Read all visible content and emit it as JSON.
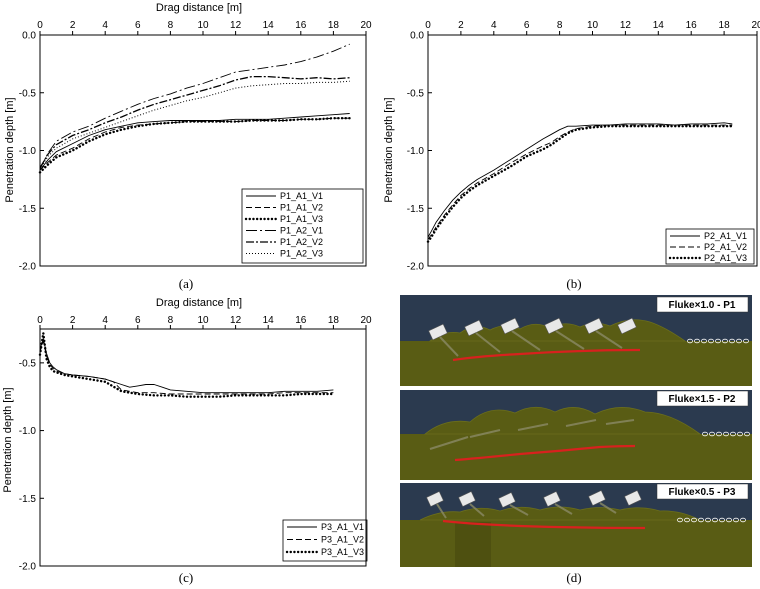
{
  "colors": {
    "line": "#000000",
    "sky": "#2b3a4f",
    "soil": "#595c14",
    "soil_dark": "#4c4f10",
    "trajectory": "#d8211e",
    "label_bg": "#ffffff"
  },
  "charts": [
    {
      "caption": "(a)",
      "xlabel": "Drag distance [m]",
      "ylabel": "Penetration depth [m]",
      "x_ticks": [
        "0",
        "2",
        "4",
        "6",
        "8",
        "10",
        "12",
        "14",
        "16",
        "18",
        "20"
      ],
      "y_ticks": [
        "0.0",
        "-0.5",
        "-1.0",
        "-1.5",
        "-2.0"
      ]
    },
    {
      "caption": "(b)",
      "xlabel": "",
      "ylabel": "Penetration depth [m]",
      "x_ticks": [
        "0",
        "2",
        "4",
        "6",
        "8",
        "10",
        "12",
        "14",
        "16",
        "18",
        "20"
      ],
      "y_ticks": [
        "0.0",
        "-0.5",
        "-1.0",
        "-1.5",
        "-2.0"
      ]
    },
    {
      "caption": "(c)",
      "xlabel": "Drag distance [m]",
      "ylabel": "Penetration depth [m]",
      "x_ticks": [
        "0",
        "2",
        "4",
        "6",
        "8",
        "10",
        "12",
        "14",
        "16",
        "18",
        "20"
      ],
      "y_ticks": [
        "-0.5",
        "-1.0",
        "-1.5",
        "-2.0"
      ]
    }
  ],
  "chart_data": [
    {
      "type": "line",
      "xlim": [
        0,
        20
      ],
      "ylim": [
        -2.0,
        0.0
      ],
      "grid": false,
      "legend_position": "bottom-right",
      "series": [
        {
          "name": "P1_A1_V1",
          "style": "solid",
          "x": [
            0,
            0.5,
            1,
            2,
            3,
            4,
            5,
            6,
            7,
            8,
            9,
            10,
            11,
            12,
            13,
            14,
            15,
            16,
            17,
            18,
            19
          ],
          "y": [
            -1.17,
            -1.08,
            -1.01,
            -0.94,
            -0.87,
            -0.82,
            -0.79,
            -0.76,
            -0.75,
            -0.74,
            -0.74,
            -0.74,
            -0.74,
            -0.73,
            -0.73,
            -0.73,
            -0.72,
            -0.71,
            -0.7,
            -0.69,
            -0.68
          ]
        },
        {
          "name": "P1_A1_V2",
          "style": "dashed",
          "x": [
            0,
            0.5,
            1,
            2,
            3,
            4,
            5,
            6,
            7,
            8,
            9,
            10,
            11,
            12,
            13,
            14,
            15,
            16,
            17,
            18,
            19
          ],
          "y": [
            -1.17,
            -1.1,
            -1.04,
            -0.98,
            -0.9,
            -0.84,
            -0.8,
            -0.78,
            -0.77,
            -0.76,
            -0.75,
            -0.75,
            -0.75,
            -0.75,
            -0.74,
            -0.74,
            -0.74,
            -0.73,
            -0.73,
            -0.72,
            -0.72
          ]
        },
        {
          "name": "P1_A1_V3",
          "style": "dotted-bold",
          "x": [
            0,
            0.5,
            1,
            2,
            3,
            4,
            5,
            6,
            7,
            8,
            9,
            10,
            11,
            12,
            13,
            14,
            15,
            16,
            17,
            18,
            19
          ],
          "y": [
            -1.19,
            -1.12,
            -1.06,
            -1.0,
            -0.92,
            -0.86,
            -0.82,
            -0.79,
            -0.77,
            -0.76,
            -0.75,
            -0.75,
            -0.75,
            -0.75,
            -0.74,
            -0.74,
            -0.74,
            -0.73,
            -0.73,
            -0.72,
            -0.72
          ]
        },
        {
          "name": "P1_A2_V1",
          "style": "long-dash",
          "x": [
            0,
            0.5,
            1,
            2,
            3,
            4,
            5,
            6,
            7,
            8,
            9,
            10,
            11,
            12,
            13,
            14,
            15,
            16,
            17,
            18,
            19
          ],
          "y": [
            -1.16,
            -1.02,
            -0.92,
            -0.84,
            -0.79,
            -0.72,
            -0.66,
            -0.6,
            -0.55,
            -0.51,
            -0.46,
            -0.42,
            -0.37,
            -0.32,
            -0.3,
            -0.28,
            -0.26,
            -0.23,
            -0.19,
            -0.14,
            -0.08
          ]
        },
        {
          "name": "P1_A2_V2",
          "style": "dash-dot",
          "x": [
            0,
            0.5,
            1,
            2,
            3,
            4,
            5,
            6,
            7,
            8,
            9,
            10,
            11,
            12,
            13,
            14,
            15,
            16,
            17,
            18,
            19
          ],
          "y": [
            -1.15,
            -1.03,
            -0.95,
            -0.87,
            -0.82,
            -0.76,
            -0.71,
            -0.65,
            -0.6,
            -0.56,
            -0.52,
            -0.48,
            -0.44,
            -0.39,
            -0.36,
            -0.36,
            -0.37,
            -0.38,
            -0.37,
            -0.38,
            -0.37
          ]
        },
        {
          "name": "P1_A2_V3",
          "style": "fine-dotted",
          "x": [
            0,
            0.5,
            1,
            2,
            3,
            4,
            5,
            6,
            7,
            8,
            9,
            10,
            11,
            12,
            13,
            14,
            15,
            16,
            17,
            18,
            19
          ],
          "y": [
            -1.16,
            -1.05,
            -0.98,
            -0.9,
            -0.85,
            -0.8,
            -0.75,
            -0.7,
            -0.65,
            -0.61,
            -0.57,
            -0.54,
            -0.5,
            -0.46,
            -0.44,
            -0.43,
            -0.42,
            -0.42,
            -0.41,
            -0.41,
            -0.4
          ]
        }
      ]
    },
    {
      "type": "line",
      "xlim": [
        0,
        20
      ],
      "ylim": [
        -2.0,
        0.0
      ],
      "grid": false,
      "legend_position": "bottom-right",
      "series": [
        {
          "name": "P2_A1_V1",
          "style": "solid",
          "x": [
            0,
            0.2,
            0.5,
            1,
            1.5,
            2,
            2.5,
            3,
            4,
            5,
            6,
            7,
            7.5,
            8,
            8.5,
            9,
            10,
            11,
            12,
            13,
            14,
            15,
            16,
            17,
            18,
            18.5
          ],
          "y": [
            -1.75,
            -1.7,
            -1.62,
            -1.52,
            -1.43,
            -1.36,
            -1.3,
            -1.25,
            -1.17,
            -1.08,
            -0.99,
            -0.9,
            -0.86,
            -0.82,
            -0.79,
            -0.79,
            -0.78,
            -0.78,
            -0.77,
            -0.77,
            -0.77,
            -0.78,
            -0.77,
            -0.77,
            -0.76,
            -0.77
          ]
        },
        {
          "name": "P2_A1_V2",
          "style": "dashed",
          "x": [
            0,
            0.2,
            0.5,
            1,
            1.5,
            2,
            2.5,
            3,
            4,
            5,
            6,
            7,
            7.5,
            8,
            8.5,
            9,
            10,
            11,
            12,
            13,
            14,
            15,
            16,
            17,
            18,
            18.5
          ],
          "y": [
            -1.77,
            -1.73,
            -1.66,
            -1.56,
            -1.47,
            -1.39,
            -1.33,
            -1.28,
            -1.2,
            -1.11,
            -1.03,
            -0.96,
            -0.93,
            -0.88,
            -0.84,
            -0.81,
            -0.79,
            -0.78,
            -0.78,
            -0.78,
            -0.78,
            -0.78,
            -0.78,
            -0.78,
            -0.78,
            -0.78
          ]
        },
        {
          "name": "P2_A1_V3",
          "style": "dotted-bold",
          "x": [
            0,
            0.2,
            0.5,
            1,
            1.5,
            2,
            2.5,
            3,
            4,
            5,
            6,
            7,
            7.5,
            8,
            8.5,
            9,
            10,
            11,
            12,
            13,
            14,
            15,
            16,
            17,
            18,
            18.5
          ],
          "y": [
            -1.79,
            -1.75,
            -1.68,
            -1.58,
            -1.49,
            -1.41,
            -1.35,
            -1.3,
            -1.22,
            -1.14,
            -1.05,
            -0.99,
            -0.95,
            -0.9,
            -0.85,
            -0.82,
            -0.8,
            -0.79,
            -0.79,
            -0.79,
            -0.79,
            -0.79,
            -0.79,
            -0.79,
            -0.79,
            -0.79
          ]
        }
      ]
    },
    {
      "type": "line",
      "xlim": [
        0,
        20
      ],
      "ylim": [
        -2.0,
        -0.25
      ],
      "grid": false,
      "legend_position": "bottom-right",
      "series": [
        {
          "name": "P3_A1_V1",
          "style": "solid",
          "x": [
            0,
            0.2,
            0.4,
            0.6,
            0.8,
            1,
            1.5,
            2,
            3,
            4,
            5,
            5.5,
            6,
            6.5,
            7,
            7.5,
            8,
            9,
            10,
            11,
            12,
            13,
            14,
            15,
            16,
            17,
            18
          ],
          "y": [
            -0.4,
            -0.32,
            -0.43,
            -0.5,
            -0.53,
            -0.55,
            -0.58,
            -0.59,
            -0.6,
            -0.62,
            -0.66,
            -0.68,
            -0.67,
            -0.66,
            -0.66,
            -0.68,
            -0.7,
            -0.71,
            -0.72,
            -0.72,
            -0.72,
            -0.72,
            -0.72,
            -0.71,
            -0.71,
            -0.71,
            -0.7
          ]
        },
        {
          "name": "P3_A1_V2",
          "style": "dashed",
          "x": [
            0,
            0.2,
            0.4,
            0.6,
            0.8,
            1,
            1.5,
            2,
            3,
            4,
            4.5,
            5,
            6,
            7,
            8,
            9,
            10,
            11,
            12,
            13,
            14,
            15,
            16,
            17,
            18
          ],
          "y": [
            -0.42,
            -0.34,
            -0.45,
            -0.51,
            -0.54,
            -0.56,
            -0.58,
            -0.59,
            -0.6,
            -0.62,
            -0.64,
            -0.7,
            -0.72,
            -0.72,
            -0.73,
            -0.73,
            -0.73,
            -0.73,
            -0.73,
            -0.73,
            -0.73,
            -0.72,
            -0.72,
            -0.72,
            -0.72
          ]
        },
        {
          "name": "P3_A1_V3",
          "style": "dotted-bold",
          "x": [
            0,
            0.2,
            0.4,
            0.6,
            0.8,
            1,
            1.5,
            2,
            3,
            4,
            5,
            6,
            7,
            8,
            9,
            10,
            11,
            12,
            13,
            14,
            15,
            16,
            17,
            18
          ],
          "y": [
            -0.44,
            -0.28,
            -0.47,
            -0.53,
            -0.56,
            -0.57,
            -0.59,
            -0.6,
            -0.62,
            -0.64,
            -0.71,
            -0.73,
            -0.74,
            -0.74,
            -0.75,
            -0.75,
            -0.75,
            -0.74,
            -0.74,
            -0.74,
            -0.74,
            -0.73,
            -0.73,
            -0.73
          ]
        }
      ]
    }
  ],
  "panel_d": {
    "caption": "(d)",
    "scenes": [
      {
        "label": "Fluke×1.0 - P1"
      },
      {
        "label": "Fluke×1.5 - P2"
      },
      {
        "label": "Fluke×0.5 - P3"
      }
    ]
  }
}
